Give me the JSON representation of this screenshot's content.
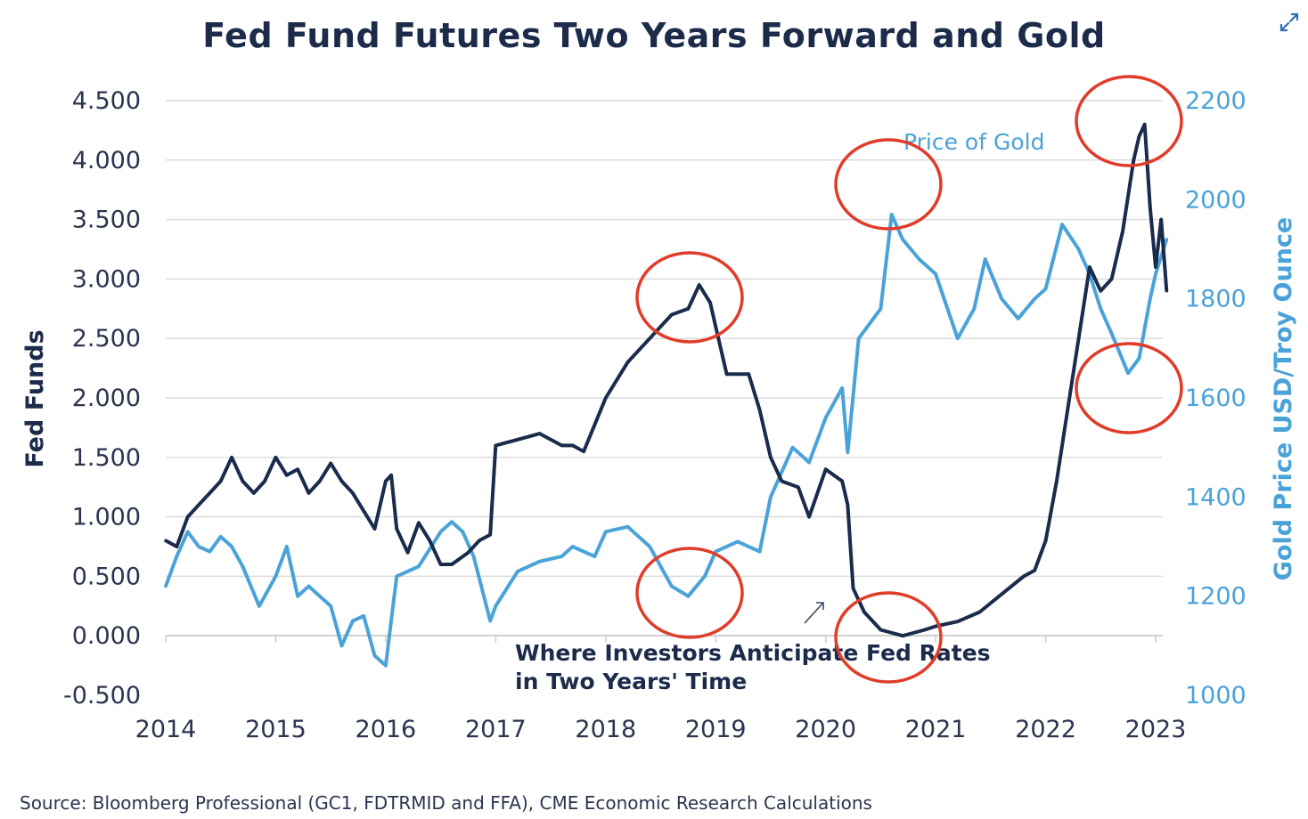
{
  "expand_icon": "expand-arrows-icon",
  "chart_data": {
    "type": "line",
    "title": "Fed Fund Futures Two Years Forward and Gold",
    "source": "Source: Bloomberg Professional (GC1, FDTRMID and FFA), CME Economic Research Calculations",
    "xlabel": "",
    "ylabel": "Fed Funds",
    "y2label": "Gold Price USD/Troy Ounce",
    "xlim": [
      2014,
      2023.15
    ],
    "ylim": [
      -0.5,
      4.5
    ],
    "y2lim": [
      1000,
      2200
    ],
    "x_ticks": [
      "2014",
      "2015",
      "2016",
      "2017",
      "2018",
      "2019",
      "2020",
      "2021",
      "2022",
      "2023"
    ],
    "y_ticks": [
      "4.500",
      "4.000",
      "3.500",
      "3.000",
      "2.500",
      "2.000",
      "1.500",
      "1.000",
      "0.500",
      "0.000",
      "-0.500"
    ],
    "y2_ticks": [
      "2200",
      "2000",
      "1800",
      "1600",
      "1400",
      "1200",
      "1000"
    ],
    "grid": true,
    "colors": {
      "fed": "#1a2b4c",
      "gold": "#4aa3d8",
      "highlight": "#e03c2a"
    },
    "annotations": {
      "gold_label": "Price of Gold",
      "fed_label_line1": "Where Investors Anticipate Fed Rates",
      "fed_label_line2": "in Two Years' Time"
    },
    "series": [
      {
        "axis": "left",
        "x": [
          2014.0,
          2014.1,
          2014.2,
          2014.3,
          2014.4,
          2014.5,
          2014.6,
          2014.7,
          2014.8,
          2014.9,
          2015.0,
          2015.1,
          2015.2,
          2015.3,
          2015.4,
          2015.5,
          2015.6,
          2015.7,
          2015.8,
          2015.9,
          2016.0,
          2016.05,
          2016.1,
          2016.2,
          2016.3,
          2016.4,
          2016.5,
          2016.6,
          2016.75,
          2016.85,
          2016.95,
          2017.0,
          2017.2,
          2017.4,
          2017.6,
          2017.7,
          2017.8,
          2018.0,
          2018.2,
          2018.4,
          2018.5,
          2018.6,
          2018.75,
          2018.85,
          2018.95,
          2019.0,
          2019.1,
          2019.3,
          2019.4,
          2019.5,
          2019.6,
          2019.75,
          2019.85,
          2020.0,
          2020.15,
          2020.2,
          2020.25,
          2020.35,
          2020.5,
          2020.7,
          2020.9,
          2021.0,
          2021.2,
          2021.4,
          2021.6,
          2021.8,
          2021.9,
          2022.0,
          2022.1,
          2022.2,
          2022.3,
          2022.4,
          2022.5,
          2022.6,
          2022.7,
          2022.8,
          2022.85,
          2022.9,
          2022.95,
          2023.0,
          2023.05,
          2023.1
        ],
        "values": [
          0.8,
          0.75,
          1.0,
          1.1,
          1.2,
          1.3,
          1.5,
          1.3,
          1.2,
          1.3,
          1.5,
          1.35,
          1.4,
          1.2,
          1.3,
          1.45,
          1.3,
          1.2,
          1.05,
          0.9,
          1.3,
          1.35,
          0.9,
          0.7,
          0.95,
          0.8,
          0.6,
          0.6,
          0.7,
          0.8,
          0.85,
          1.6,
          1.65,
          1.7,
          1.6,
          1.6,
          1.55,
          2.0,
          2.3,
          2.5,
          2.6,
          2.7,
          2.75,
          2.95,
          2.8,
          2.6,
          2.2,
          2.2,
          1.9,
          1.5,
          1.3,
          1.25,
          1.0,
          1.4,
          1.3,
          1.1,
          0.4,
          0.2,
          0.05,
          0.0,
          0.05,
          0.08,
          0.12,
          0.2,
          0.35,
          0.5,
          0.55,
          0.8,
          1.3,
          1.9,
          2.5,
          3.1,
          2.9,
          3.0,
          3.4,
          4.0,
          4.2,
          4.3,
          3.6,
          3.1,
          3.5,
          2.9
        ]
      },
      {
        "name": "Price of Gold",
        "axis": "right",
        "x": [
          2014.0,
          2014.1,
          2014.2,
          2014.3,
          2014.4,
          2014.5,
          2014.6,
          2014.7,
          2014.85,
          2015.0,
          2015.1,
          2015.2,
          2015.3,
          2015.4,
          2015.5,
          2015.6,
          2015.7,
          2015.8,
          2015.9,
          2016.0,
          2016.1,
          2016.2,
          2016.3,
          2016.5,
          2016.6,
          2016.7,
          2016.8,
          2016.95,
          2017.0,
          2017.2,
          2017.4,
          2017.6,
          2017.7,
          2017.9,
          2018.0,
          2018.2,
          2018.4,
          2018.6,
          2018.75,
          2018.9,
          2019.0,
          2019.2,
          2019.4,
          2019.5,
          2019.7,
          2019.85,
          2020.0,
          2020.15,
          2020.2,
          2020.3,
          2020.5,
          2020.6,
          2020.7,
          2020.85,
          2021.0,
          2021.2,
          2021.35,
          2021.45,
          2021.6,
          2021.75,
          2021.9,
          2022.0,
          2022.15,
          2022.3,
          2022.4,
          2022.5,
          2022.6,
          2022.75,
          2022.85,
          2022.95,
          2023.0,
          2023.1
        ],
        "values": [
          1220,
          1280,
          1330,
          1300,
          1290,
          1320,
          1300,
          1260,
          1180,
          1240,
          1300,
          1200,
          1220,
          1200,
          1180,
          1100,
          1150,
          1160,
          1080,
          1060,
          1240,
          1250,
          1260,
          1330,
          1350,
          1330,
          1280,
          1150,
          1180,
          1250,
          1270,
          1280,
          1300,
          1280,
          1330,
          1340,
          1300,
          1220,
          1200,
          1240,
          1290,
          1310,
          1290,
          1400,
          1500,
          1470,
          1560,
          1620,
          1490,
          1720,
          1780,
          1970,
          1920,
          1880,
          1850,
          1720,
          1780,
          1880,
          1800,
          1760,
          1800,
          1820,
          1950,
          1900,
          1850,
          1780,
          1730,
          1650,
          1680,
          1800,
          1850,
          1920
        ]
      }
    ]
  }
}
